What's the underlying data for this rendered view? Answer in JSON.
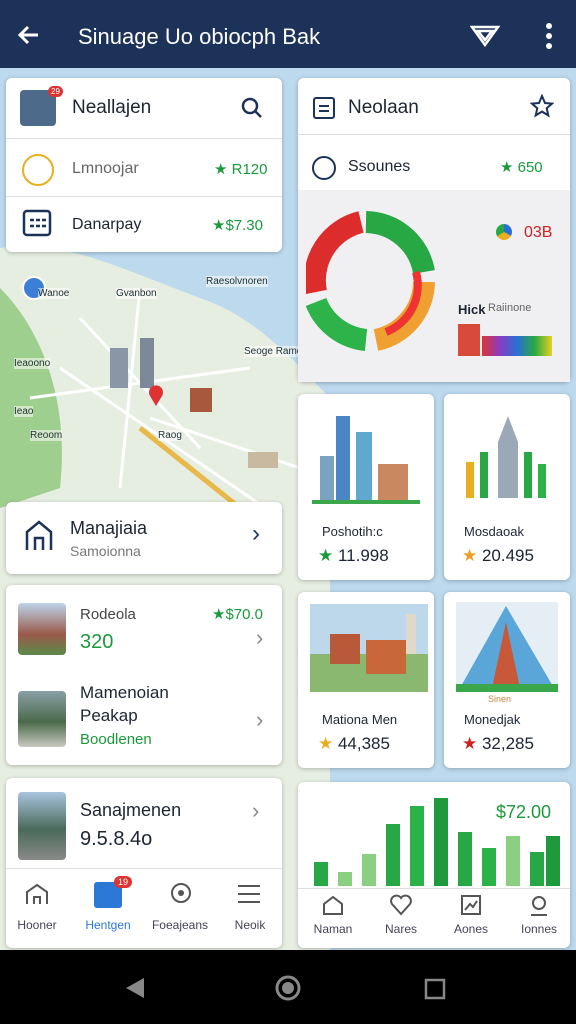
{
  "header": {
    "title": "Sinuage Uo obiocph Bak"
  },
  "search_card": {
    "title": "Neallajen",
    "badge": "29",
    "rows": [
      {
        "label": "Lmnoojar",
        "value": "R120"
      },
      {
        "label": "Danarpay",
        "value": "$7.30"
      }
    ]
  },
  "map": {
    "labels": [
      "Wanoe",
      "Gvanbon",
      "Raesolvnoren",
      "Seoge Ramol",
      "Ieaoono",
      "Ieao",
      "Reoom",
      "Raog"
    ]
  },
  "favorites_card": {
    "title": "Neolaan",
    "row": {
      "label": "Ssounes",
      "value": "650"
    },
    "chart": {
      "value": "03B",
      "label": "Hick",
      "sublabel": "Raiinone"
    }
  },
  "place_card": {
    "title": "Manajiaia",
    "subtitle": "Samoionna"
  },
  "list_card": {
    "items": [
      {
        "title": "Rodeola",
        "price": "$70.0",
        "value": "320"
      },
      {
        "title": "Mamenoian Peakap",
        "subtitle": "Boodlenen"
      }
    ]
  },
  "route_card": {
    "title": "Sanajmenen",
    "value": "9.5.8.4o"
  },
  "tiles": [
    {
      "title": "Poshotih:c",
      "value": "11.998"
    },
    {
      "title": "Mosdaoak",
      "value": "20.495"
    },
    {
      "title": "Mationa Men",
      "value": "44,385"
    },
    {
      "title": "Monedjak",
      "value": "32,285",
      "badge": "Sinen"
    }
  ],
  "stats_card": {
    "value": "$72.00"
  },
  "left_nav": [
    {
      "label": "Hooner"
    },
    {
      "label": "Hentgen",
      "badge": "19"
    },
    {
      "label": "Foeajeans"
    },
    {
      "label": "Neoik"
    }
  ],
  "right_nav": [
    {
      "label": "Naman"
    },
    {
      "label": "Nares"
    },
    {
      "label": "Aones"
    },
    {
      "label": "Ionnes"
    }
  ]
}
